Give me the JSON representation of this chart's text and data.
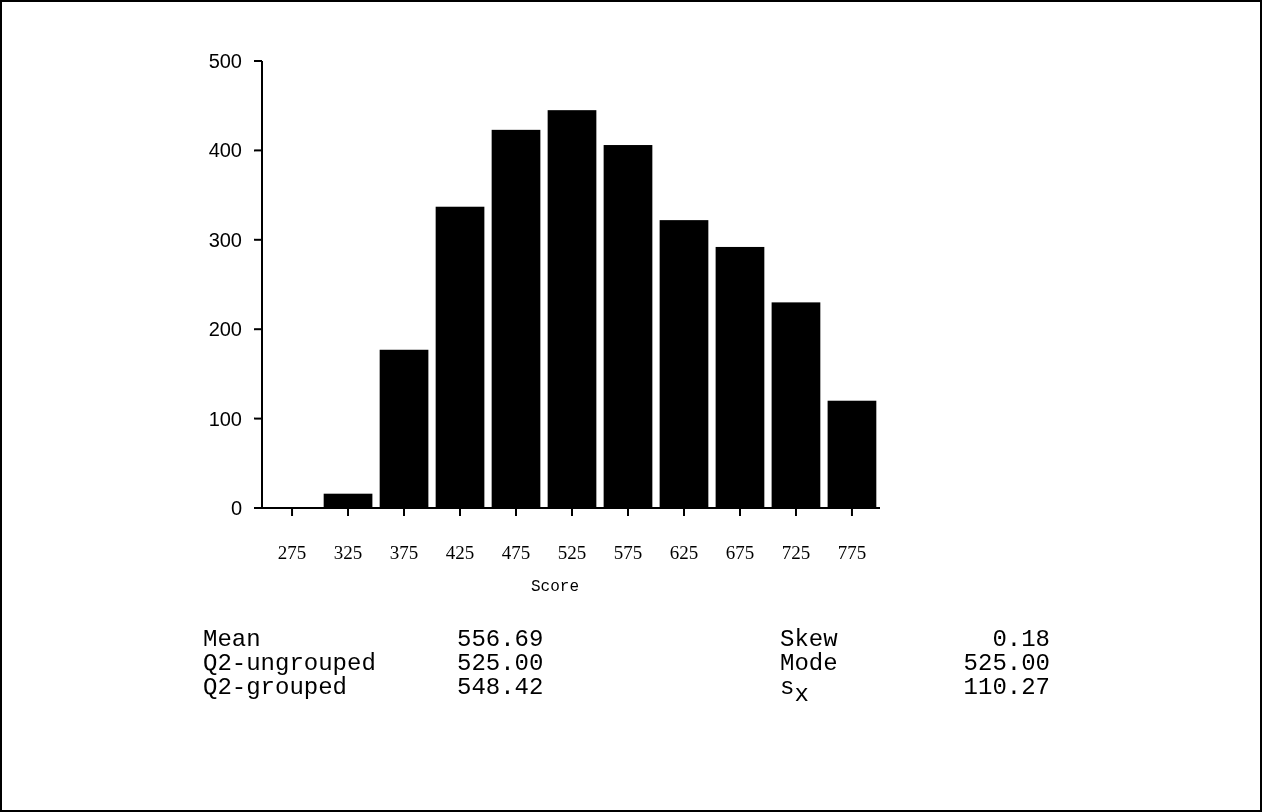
{
  "chart_data": {
    "type": "bar",
    "categories": [
      "275",
      "325",
      "375",
      "425",
      "475",
      "525",
      "575",
      "625",
      "675",
      "725",
      "775"
    ],
    "values": [
      0,
      16,
      177,
      337,
      423,
      445,
      406,
      322,
      292,
      230,
      120
    ],
    "color": "#000000",
    "xlabel": "Score",
    "ylim": [
      0,
      500
    ],
    "yticks": [
      0,
      100,
      200,
      300,
      400,
      500
    ],
    "grid": false,
    "annotations": [
      "Mean",
      "556.69",
      "Skew",
      "0.18",
      "Q2-ungrouped",
      "525.00",
      "Mode",
      "525.00",
      "Q2-grouped",
      "548.42",
      "s$_{x}$",
      "110.27"
    ]
  }
}
